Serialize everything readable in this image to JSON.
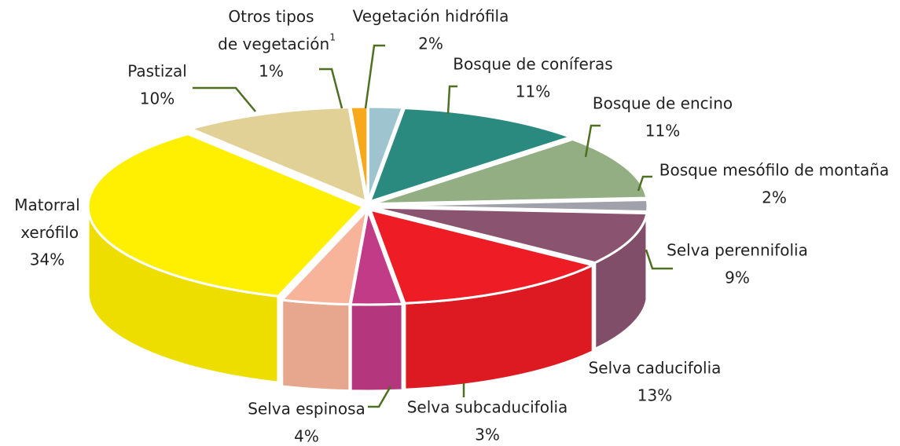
{
  "chart_data": {
    "type": "pie3d",
    "categories": [
      "Vegetación hidrófila",
      "Bosque de coníferas",
      "Bosque de encino",
      "Bosque mesófilo de montaña",
      "Selva perennifolia",
      "Selva caducifolia",
      "Selva subcaducifolia",
      "Selva espinosa",
      "Matorral xerófilo",
      "Pastizal",
      "Otros tipos de vegetación"
    ],
    "values": [
      2,
      11,
      11,
      2,
      9,
      13,
      3,
      4,
      34,
      10,
      1
    ],
    "value_labels": [
      "2%",
      "11%",
      "11%",
      "2%",
      "9%",
      "13%",
      "3%",
      "4%",
      "34%",
      "10%",
      "1%"
    ],
    "notes": [
      null,
      null,
      null,
      null,
      null,
      null,
      null,
      null,
      null,
      null,
      "1"
    ],
    "colors": [
      "#9ec5cf",
      "#2a8a80",
      "#93ae82",
      "#a0a1aa",
      "#8a5470",
      "#ee1c25",
      "#c23b86",
      "#f8b49a",
      "#ffef00",
      "#e2d196",
      "#f7a81b"
    ]
  }
}
